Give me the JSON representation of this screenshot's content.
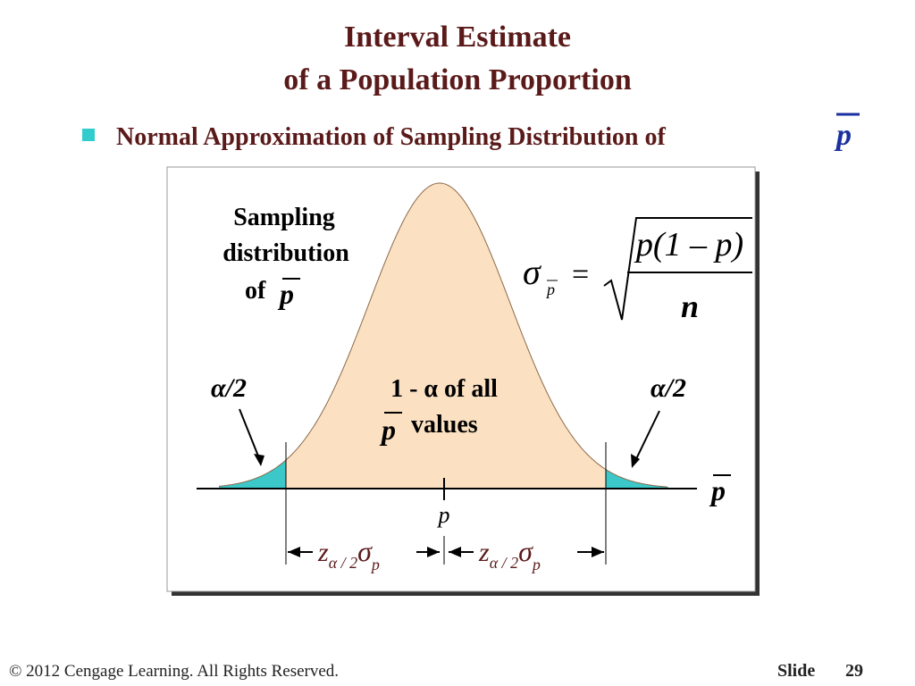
{
  "title": [
    "Interval Estimate",
    "of a Population Proportion"
  ],
  "bullet": {
    "text": "Normal Approximation of Sampling Distribution of",
    "symbol": "p"
  },
  "figure": {
    "curve_label": [
      "Sampling",
      "distribution",
      "of"
    ],
    "curve_label_symbol": "p",
    "formula": {
      "sigma": "σ",
      "subscript": "p",
      "equals": "=",
      "numerator": "p(1 – p)",
      "denominator": "n"
    },
    "left_tail": "α/2",
    "right_tail": "α/2",
    "center_label": [
      "1 - α  of all",
      "values"
    ],
    "center_symbol": "p",
    "axis_label": "p",
    "mean_label": "p",
    "margin_left": {
      "z": "z",
      "sub": "α / 2",
      "sigma": "σ",
      "sigma_sub": "p"
    },
    "margin_right": {
      "z": "z",
      "sub": "α / 2",
      "sigma": "σ",
      "sigma_sub": "p"
    }
  },
  "footer": {
    "copyright": "© 2012  Cengage Learning.  All Rights Reserved.",
    "slide_label": "Slide",
    "slide_number": "29"
  }
}
